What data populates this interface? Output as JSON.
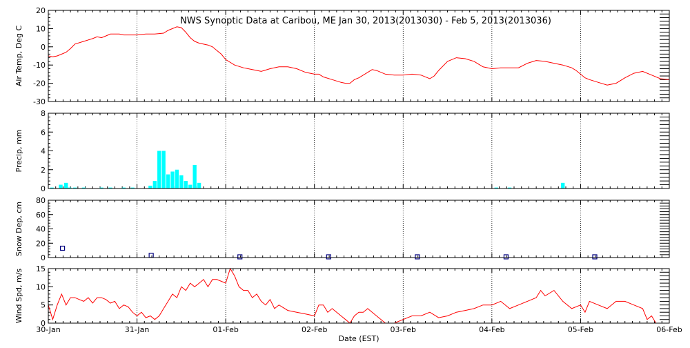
{
  "title": "NWS Synoptic Data at Caribou, ME   Jan 30, 2013(2013030) - Feb  5, 2013(2013036)",
  "xlabel": "Date (EST)",
  "x_ticks": [
    "30-Jan",
    "31-Jan",
    "01-Feb",
    "02-Feb",
    "03-Feb",
    "04-Feb",
    "05-Feb",
    "06-Feb"
  ],
  "colors": {
    "temp": "#ff0000",
    "precip": "#00ffff",
    "snow": "#00007f",
    "wind": "#ff0000",
    "axis": "#000000"
  },
  "chart_data": [
    {
      "type": "line",
      "ylabel": "Air Temp, Deg C",
      "ylim": [
        -30,
        20
      ],
      "yticks": [
        -30,
        -20,
        -10,
        0,
        10,
        20
      ],
      "x_unit": "days since 30-Jan 00:00 EST",
      "xlim": [
        0,
        7
      ],
      "series": [
        {
          "name": "Air Temp",
          "points": [
            [
              0,
              -5
            ],
            [
              0.05,
              -5.5
            ],
            [
              0.1,
              -5
            ],
            [
              0.15,
              -4
            ],
            [
              0.2,
              -3
            ],
            [
              0.25,
              -1
            ],
            [
              0.3,
              1.5
            ],
            [
              0.4,
              3
            ],
            [
              0.5,
              4.5
            ],
            [
              0.55,
              5.5
            ],
            [
              0.6,
              5
            ],
            [
              0.65,
              6
            ],
            [
              0.7,
              7
            ],
            [
              0.8,
              7
            ],
            [
              0.85,
              6.5
            ],
            [
              0.9,
              6.5
            ],
            [
              1.0,
              6.5
            ],
            [
              1.1,
              7
            ],
            [
              1.2,
              7
            ],
            [
              1.3,
              7.5
            ],
            [
              1.35,
              9
            ],
            [
              1.4,
              10
            ],
            [
              1.45,
              11
            ],
            [
              1.5,
              10.5
            ],
            [
              1.55,
              8
            ],
            [
              1.6,
              5
            ],
            [
              1.65,
              3
            ],
            [
              1.7,
              2
            ],
            [
              1.8,
              1
            ],
            [
              1.85,
              0
            ],
            [
              1.9,
              -2
            ],
            [
              1.95,
              -4
            ],
            [
              2.0,
              -7
            ],
            [
              2.1,
              -10
            ],
            [
              2.2,
              -11.5
            ],
            [
              2.3,
              -12.5
            ],
            [
              2.4,
              -13.5
            ],
            [
              2.5,
              -12
            ],
            [
              2.6,
              -11
            ],
            [
              2.7,
              -11
            ],
            [
              2.8,
              -12
            ],
            [
              2.9,
              -14
            ],
            [
              3.0,
              -15
            ],
            [
              3.05,
              -15
            ],
            [
              3.1,
              -16.5
            ],
            [
              3.2,
              -18
            ],
            [
              3.3,
              -19.5
            ],
            [
              3.35,
              -20
            ],
            [
              3.4,
              -20
            ],
            [
              3.45,
              -18
            ],
            [
              3.5,
              -17
            ],
            [
              3.6,
              -14
            ],
            [
              3.65,
              -12.5
            ],
            [
              3.7,
              -13
            ],
            [
              3.8,
              -15
            ],
            [
              3.9,
              -15.5
            ],
            [
              4.0,
              -15.5
            ],
            [
              4.1,
              -15
            ],
            [
              4.2,
              -15.5
            ],
            [
              4.3,
              -17.5
            ],
            [
              4.35,
              -16
            ],
            [
              4.4,
              -13
            ],
            [
              4.5,
              -8
            ],
            [
              4.6,
              -6
            ],
            [
              4.7,
              -6.5
            ],
            [
              4.8,
              -8
            ],
            [
              4.85,
              -9.5
            ],
            [
              4.9,
              -11
            ],
            [
              5.0,
              -12
            ],
            [
              5.1,
              -11.5
            ],
            [
              5.3,
              -11.5
            ],
            [
              5.4,
              -9
            ],
            [
              5.5,
              -7.5
            ],
            [
              5.6,
              -8
            ],
            [
              5.7,
              -9
            ],
            [
              5.8,
              -10
            ],
            [
              5.9,
              -11.5
            ],
            [
              5.95,
              -13
            ],
            [
              6.05,
              -17
            ],
            [
              6.1,
              -18
            ],
            [
              6.2,
              -19.5
            ],
            [
              6.3,
              -21
            ],
            [
              6.4,
              -20
            ],
            [
              6.5,
              -17
            ],
            [
              6.6,
              -14.5
            ],
            [
              6.7,
              -13.5
            ],
            [
              6.8,
              -15.5
            ],
            [
              6.9,
              -17.5
            ],
            [
              7.0,
              -18
            ]
          ]
        }
      ]
    },
    {
      "type": "bar",
      "ylabel": "Precip, mm",
      "ylim": [
        0,
        8
      ],
      "yticks": [
        0,
        2,
        4,
        6,
        8
      ],
      "x_unit": "days since 30-Jan 00:00 EST",
      "xlim": [
        0,
        7
      ],
      "bars": [
        [
          0.04,
          0.1
        ],
        [
          0.14,
          0.4
        ],
        [
          0.2,
          0.6
        ],
        [
          0.24,
          0.1
        ],
        [
          0.3,
          0.1
        ],
        [
          0.4,
          0.1
        ],
        [
          0.6,
          0.1
        ],
        [
          0.7,
          0.1
        ],
        [
          0.85,
          0.1
        ],
        [
          0.95,
          0.1
        ],
        [
          1.15,
          0.3
        ],
        [
          1.2,
          0.8
        ],
        [
          1.25,
          4
        ],
        [
          1.3,
          4
        ],
        [
          1.35,
          1.5
        ],
        [
          1.4,
          1.8
        ],
        [
          1.45,
          2
        ],
        [
          1.5,
          1.4
        ],
        [
          1.55,
          0.8
        ],
        [
          1.6,
          0.4
        ],
        [
          1.65,
          2.5
        ],
        [
          1.7,
          0.6
        ],
        [
          5.05,
          0.1
        ],
        [
          5.2,
          0.1
        ],
        [
          5.8,
          0.6
        ]
      ]
    },
    {
      "type": "scatter",
      "ylabel": "Snow Dep, cm",
      "ylim": [
        0,
        80
      ],
      "yticks": [
        0,
        20,
        40,
        60,
        80
      ],
      "x_unit": "days since 30-Jan 00:00 EST",
      "xlim": [
        0,
        7
      ],
      "points": [
        [
          0.16,
          13
        ],
        [
          1.16,
          3
        ],
        [
          2.16,
          1
        ],
        [
          3.16,
          1
        ],
        [
          4.16,
          1
        ],
        [
          5.16,
          1
        ],
        [
          6.16,
          1
        ]
      ]
    },
    {
      "type": "line",
      "ylabel": "Wind Spd, m/s",
      "ylim": [
        0,
        15
      ],
      "yticks": [
        0,
        5,
        10,
        15
      ],
      "x_unit": "days since 30-Jan 00:00 EST",
      "xlim": [
        0,
        7
      ],
      "series": [
        {
          "name": "Wind Spd",
          "points": [
            [
              0,
              5
            ],
            [
              0.05,
              1
            ],
            [
              0.1,
              5
            ],
            [
              0.15,
              8
            ],
            [
              0.2,
              5
            ],
            [
              0.25,
              7
            ],
            [
              0.3,
              7
            ],
            [
              0.35,
              6.5
            ],
            [
              0.4,
              6
            ],
            [
              0.45,
              7
            ],
            [
              0.5,
              5.5
            ],
            [
              0.55,
              7
            ],
            [
              0.6,
              7
            ],
            [
              0.65,
              6.5
            ],
            [
              0.7,
              5.5
            ],
            [
              0.75,
              6
            ],
            [
              0.8,
              4
            ],
            [
              0.85,
              5
            ],
            [
              0.9,
              4.5
            ],
            [
              0.95,
              3
            ],
            [
              1.0,
              2
            ],
            [
              1.05,
              3
            ],
            [
              1.1,
              1.5
            ],
            [
              1.15,
              2
            ],
            [
              1.2,
              1
            ],
            [
              1.25,
              2
            ],
            [
              1.3,
              4
            ],
            [
              1.35,
              6
            ],
            [
              1.4,
              8
            ],
            [
              1.45,
              7
            ],
            [
              1.5,
              10
            ],
            [
              1.55,
              9
            ],
            [
              1.6,
              11
            ],
            [
              1.65,
              10
            ],
            [
              1.7,
              11
            ],
            [
              1.75,
              12
            ],
            [
              1.8,
              10
            ],
            [
              1.85,
              12
            ],
            [
              1.9,
              12
            ],
            [
              1.95,
              11.5
            ],
            [
              2.0,
              11
            ],
            [
              2.05,
              15
            ],
            [
              2.1,
              13
            ],
            [
              2.15,
              10
            ],
            [
              2.2,
              9
            ],
            [
              2.25,
              9
            ],
            [
              2.3,
              7
            ],
            [
              2.35,
              8
            ],
            [
              2.4,
              6
            ],
            [
              2.45,
              5
            ],
            [
              2.5,
              6.5
            ],
            [
              2.55,
              4
            ],
            [
              2.6,
              5
            ],
            [
              2.7,
              3.5
            ],
            [
              2.8,
              3
            ],
            [
              2.9,
              2.5
            ],
            [
              3.0,
              2
            ],
            [
              3.05,
              5
            ],
            [
              3.1,
              5
            ],
            [
              3.15,
              3
            ],
            [
              3.2,
              4
            ],
            [
              3.3,
              2
            ],
            [
              3.35,
              1
            ],
            [
              3.4,
              0
            ],
            [
              3.45,
              2
            ],
            [
              3.5,
              3
            ],
            [
              3.55,
              3
            ],
            [
              3.6,
              4
            ],
            [
              3.7,
              2
            ],
            [
              3.8,
              0
            ],
            [
              3.9,
              0
            ],
            [
              4.0,
              1
            ],
            [
              4.1,
              2
            ],
            [
              4.2,
              2
            ],
            [
              4.3,
              3
            ],
            [
              4.4,
              1.5
            ],
            [
              4.5,
              2
            ],
            [
              4.6,
              3
            ],
            [
              4.7,
              3.5
            ],
            [
              4.8,
              4
            ],
            [
              4.9,
              5
            ],
            [
              5.0,
              5
            ],
            [
              5.1,
              6
            ],
            [
              5.2,
              4
            ],
            [
              5.3,
              5
            ],
            [
              5.4,
              6
            ],
            [
              5.5,
              7
            ],
            [
              5.55,
              9
            ],
            [
              5.6,
              7.5
            ],
            [
              5.7,
              9
            ],
            [
              5.8,
              6
            ],
            [
              5.9,
              4
            ],
            [
              6.0,
              5
            ],
            [
              6.05,
              3
            ],
            [
              6.1,
              6
            ],
            [
              6.2,
              5
            ],
            [
              6.3,
              4
            ],
            [
              6.4,
              6
            ],
            [
              6.5,
              6
            ],
            [
              6.6,
              5
            ],
            [
              6.7,
              4
            ],
            [
              6.75,
              1
            ],
            [
              6.8,
              2
            ],
            [
              6.85,
              0
            ],
            [
              6.9,
              0
            ],
            [
              7.0,
              0
            ]
          ]
        }
      ]
    }
  ]
}
